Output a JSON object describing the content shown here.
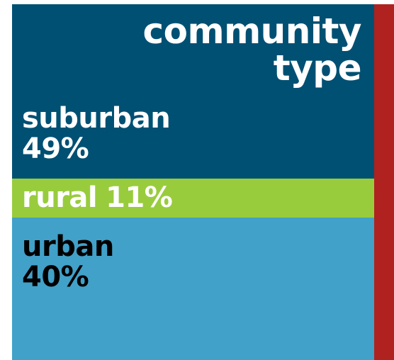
{
  "chart_data": {
    "type": "stacked-bar",
    "title": "community type",
    "categories": [
      "suburban",
      "rural",
      "urban"
    ],
    "values": [
      49,
      11,
      40
    ],
    "units": "%",
    "series": [
      {
        "name": "suburban",
        "value": 49,
        "value_label": "49%",
        "color": "#005073",
        "text_color": "#ffffff"
      },
      {
        "name": "rural",
        "value": 11,
        "value_label": "11%",
        "color": "#99cc3d",
        "text_color": "#ffffff"
      },
      {
        "name": "urban",
        "value": 40,
        "value_label": "40%",
        "color": "#41a1c8",
        "text_color": "#000000"
      }
    ]
  },
  "colors": {
    "accent_bar": "#b0221f"
  }
}
